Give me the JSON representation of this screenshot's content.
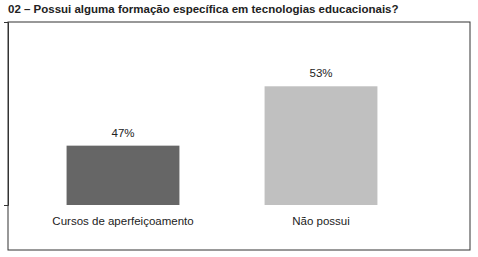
{
  "chart_data": {
    "type": "bar",
    "title": "02 – Possui alguma formação específica em tecnologias educacionais?",
    "categories": [
      "Cursos de aperfeiçoamento",
      "Não possui"
    ],
    "values": [
      47,
      53
    ],
    "value_labels": [
      "47%",
      "53%"
    ],
    "colors": [
      "#666666",
      "#c0c0c0"
    ],
    "ylim": [
      41,
      59.5
    ],
    "yticks": [],
    "tick_labels": "x",
    "grid": false,
    "data_labels": true
  }
}
